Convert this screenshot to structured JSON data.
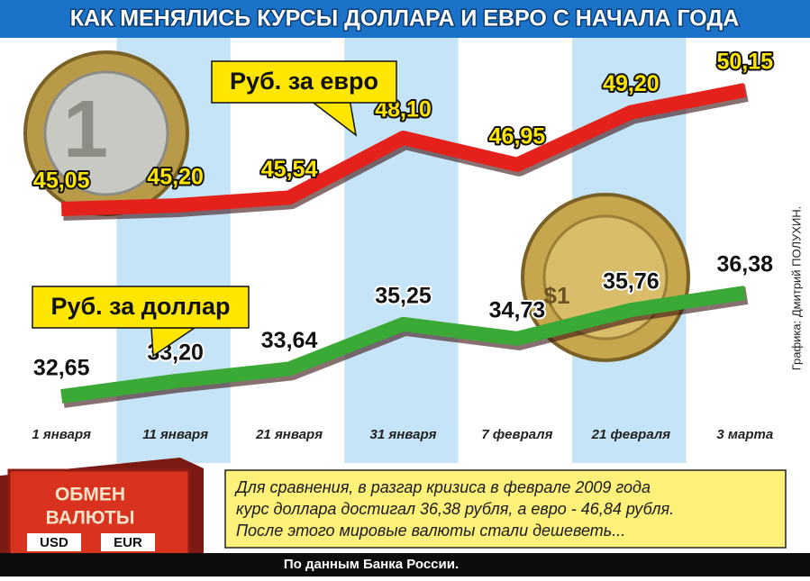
{
  "chart_data": {
    "type": "line",
    "title": "КАК МЕНЯЛИСЬ КУРСЫ ДОЛЛАРА И ЕВРО С НАЧАЛА ГОДА",
    "categories": [
      "1 января",
      "11 января",
      "21 января",
      "31 января",
      "7 февраля",
      "21 февраля",
      "3 марта"
    ],
    "series": [
      {
        "name": "Руб. за евро",
        "color": "#e5211b",
        "values": [
          45.05,
          45.2,
          45.54,
          48.1,
          46.95,
          49.2,
          50.15
        ],
        "value_labels": [
          "45,05",
          "45,20",
          "45,54",
          "48,10",
          "46,95",
          "49,20",
          "50,15"
        ]
      },
      {
        "name": "Руб. за доллар",
        "color": "#3aa935",
        "values": [
          32.65,
          33.2,
          33.64,
          35.25,
          34.73,
          35.76,
          36.38
        ],
        "value_labels": [
          "32,65",
          "33,20",
          "33,64",
          "35,25",
          "34,73",
          "35,76",
          "36,38"
        ]
      }
    ],
    "note": [
      "Для сравнения, в разгар кризиса в феврале 2009 года",
      "курс доллара достигал 36,38 рубля, а евро - 46,84 рубля.",
      "После этого мировые валюты стали дешеветь..."
    ],
    "source": "По данным Банка России.",
    "credit": "Графика: Дмитрий ПОЛУХИН.",
    "sign": {
      "lines": [
        "ОБМЕН",
        "ВАЛЮТЫ"
      ],
      "currencies": [
        "USD",
        "EUR"
      ]
    },
    "euro_coin": "1",
    "dollar_coin": "$1"
  }
}
